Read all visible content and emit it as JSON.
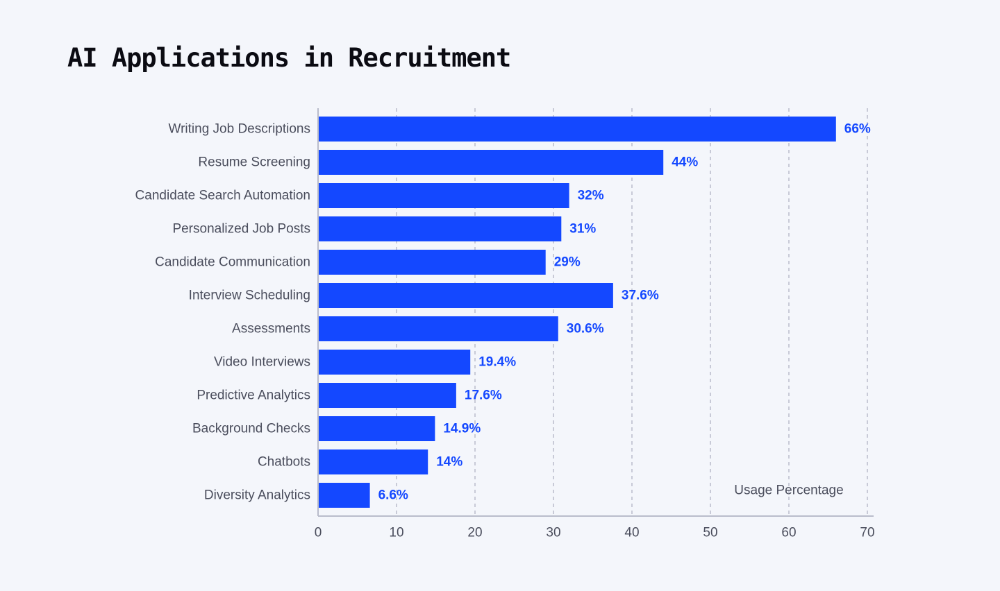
{
  "chart_data": {
    "type": "bar",
    "orientation": "horizontal",
    "title": "AI Applications in Recruitment",
    "xlabel": "Usage Percentage",
    "ylabel": "",
    "xlim": [
      0,
      70
    ],
    "xticks": [
      0,
      10,
      20,
      30,
      40,
      50,
      60,
      70
    ],
    "grid": "vertical-dashed",
    "categories": [
      "Writing Job Descriptions",
      "Resume Screening",
      "Candidate Search Automation",
      "Personalized Job Posts",
      "Candidate Communication",
      "Interview Scheduling",
      "Assessments",
      "Video Interviews",
      "Predictive Analytics",
      "Background Checks",
      "Chatbots",
      "Diversity Analytics"
    ],
    "values": [
      66,
      44,
      32,
      31,
      29,
      37.6,
      30.6,
      19.4,
      17.6,
      14.9,
      14,
      6.6
    ],
    "value_labels": [
      "66%",
      "44%",
      "32%",
      "31%",
      "29%",
      "37.6%",
      "30.6%",
      "19.4%",
      "17.6%",
      "14.9%",
      "14%",
      "6.6%"
    ],
    "colors": {
      "bar": "#1448ff",
      "value_label": "#1448ff",
      "grid": "#b9bccb",
      "axis": "#b9bccb",
      "text": "#4a4d5c",
      "background": "#f4f6fb"
    }
  }
}
